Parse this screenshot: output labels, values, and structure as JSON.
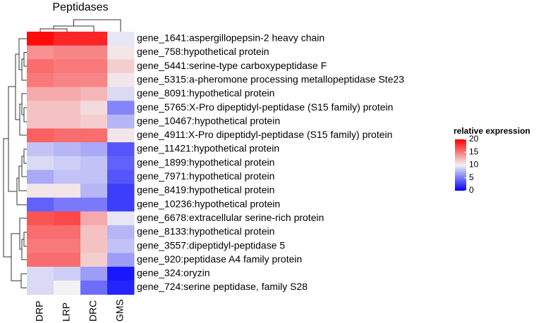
{
  "chart_data": {
    "type": "heatmap",
    "title": "Peptidases",
    "columns": [
      "DRP",
      "LRP",
      "DRC",
      "GMS"
    ],
    "rows": [
      "gene_1641:aspergillopepsin-2 heavy chain",
      "gene_758:hypothetical protein",
      "gene_5441:serine-type carboxypeptidase F",
      "gene_5315:a-pheromone processing metallopeptidase Ste23",
      "gene_8091:hypothetical protein",
      "gene_5765:X-Pro dipeptidyl-peptidase (S15 family) protein",
      "gene_10467:hypothetical protein",
      "gene_4911:X-Pro dipeptidyl-peptidase (S15 family) protein",
      "gene_11421:hypothetical protein",
      "gene_1899:hypothetical protein",
      "gene_7971:hypothetical protein",
      "gene_8419:hypothetical protein",
      "gene_10236:hypothetical protein",
      "gene_6678:extracellular serine-rich protein",
      "gene_8133:hypothetical protein",
      "gene_3557:dipeptidyl-peptidase 5",
      "gene_920:peptidase A4 family protein",
      "gene_324:oryzin",
      "gene_724:serine peptidase, family S28"
    ],
    "values": [
      [
        19.5,
        18.5,
        18.5,
        9.5
      ],
      [
        14,
        14.5,
        14.5,
        10.5
      ],
      [
        15.5,
        15,
        15,
        11.5
      ],
      [
        15,
        14.5,
        14.5,
        10.5
      ],
      [
        13,
        13,
        12.5,
        9
      ],
      [
        12,
        12,
        11,
        5.5
      ],
      [
        12,
        12,
        11.5,
        7.5
      ],
      [
        16,
        15.5,
        15.5,
        10.5
      ],
      [
        8,
        7.5,
        7,
        3.5
      ],
      [
        9,
        8.5,
        8,
        4
      ],
      [
        7,
        8,
        8,
        3.5
      ],
      [
        10.5,
        10.5,
        7.5,
        2.5
      ],
      [
        4,
        5,
        5,
        2.5
      ],
      [
        16.5,
        17,
        13,
        9.5
      ],
      [
        15.5,
        15.5,
        12,
        7.5
      ],
      [
        15,
        15,
        12,
        8
      ],
      [
        15.5,
        15.5,
        11.5,
        6.5
      ],
      [
        9,
        8.5,
        6.5,
        1
      ],
      [
        9,
        10,
        4.5,
        1.5
      ]
    ],
    "colorbar": {
      "title": "relative expression",
      "lim": [
        0,
        20
      ],
      "ticks": [
        0,
        5,
        10,
        15,
        20
      ]
    },
    "colors": {
      "low": "#0000ff",
      "mid": "#f2f2f4",
      "high": "#ff0000"
    }
  }
}
